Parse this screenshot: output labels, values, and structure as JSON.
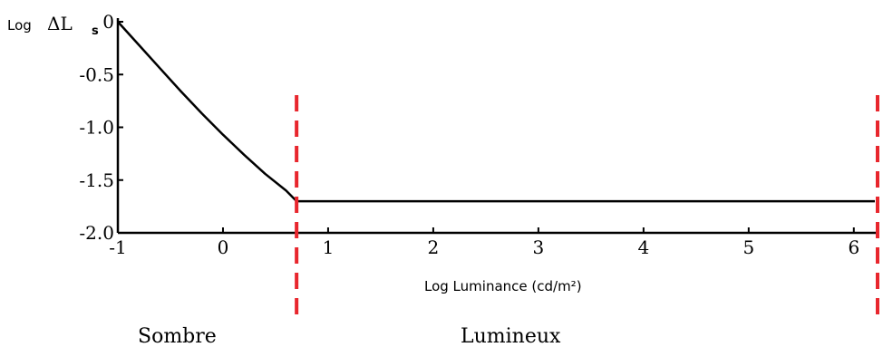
{
  "chart_data": {
    "type": "line",
    "x": [
      -1,
      -0.8,
      -0.6,
      -0.4,
      -0.2,
      0,
      0.2,
      0.4,
      0.6,
      0.7,
      1.0,
      2.0,
      3.0,
      4.0,
      5.0,
      6.2
    ],
    "series": [
      {
        "values": [
          0,
          -0.22,
          -0.44,
          -0.66,
          -0.87,
          -1.07,
          -1.26,
          -1.44,
          -1.6,
          -1.7,
          -1.7,
          -1.7,
          -1.7,
          -1.7,
          -1.7,
          -1.7
        ]
      }
    ],
    "xticks": [
      -1,
      0,
      1,
      2,
      3,
      4,
      5,
      6
    ],
    "xtick_labels": [
      "-1",
      "0",
      "1",
      "2",
      "3",
      "4",
      "5",
      "6"
    ],
    "yticks": [
      0,
      -0.5,
      -1.0,
      -1.5,
      -2.0
    ],
    "ytick_labels": [
      "0",
      "-0.5",
      "-1.0",
      "-1.5",
      "-2.0"
    ],
    "xlim": [
      -1,
      6.2
    ],
    "ylim": [
      -2.0,
      0
    ],
    "xlabel": "Log Luminance (cd/m²)",
    "ylabel_prefix": "Log",
    "ylabel": "ΔL",
    "ylabel_sub": "s",
    "vlines_x": [
      0.7,
      6.3
    ],
    "vline_color": "#e8262d",
    "regions": [
      "Sombre",
      "Lumineux"
    ],
    "grid": false,
    "legend": "none"
  }
}
